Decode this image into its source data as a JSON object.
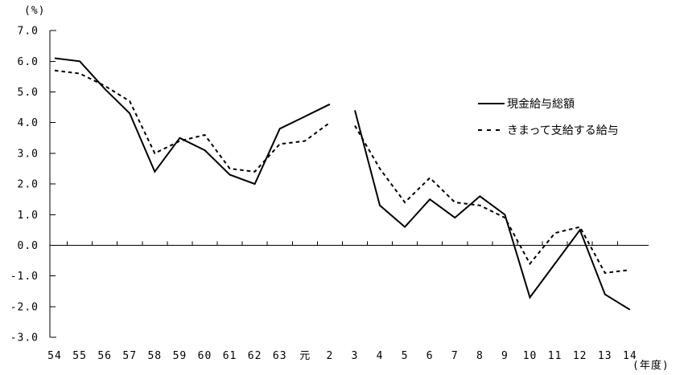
{
  "chart_data": {
    "type": "line",
    "title": "",
    "unit_label_y": "(%)",
    "unit_label_x": "(年度)",
    "categories": [
      "54",
      "55",
      "56",
      "57",
      "58",
      "59",
      "60",
      "61",
      "62",
      "63",
      "元",
      "2",
      "3",
      "4",
      "5",
      "6",
      "7",
      "8",
      "9",
      "10",
      "11",
      "12",
      "13",
      "14"
    ],
    "gap_after_index": 11,
    "series": [
      {
        "name": "現金給与総額",
        "style": "solid",
        "values": [
          6.1,
          6.0,
          5.1,
          4.3,
          2.4,
          3.5,
          3.1,
          2.3,
          2.0,
          3.8,
          4.2,
          4.6,
          4.4,
          1.3,
          0.6,
          1.5,
          0.9,
          1.6,
          1.0,
          -1.7,
          -0.6,
          0.5,
          -1.6,
          -2.1
        ]
      },
      {
        "name": "きまって支給する給与",
        "style": "dotted",
        "values": [
          5.7,
          5.6,
          5.2,
          4.7,
          3.0,
          3.4,
          3.6,
          2.5,
          2.4,
          3.3,
          3.4,
          4.0,
          3.9,
          2.5,
          1.4,
          2.2,
          1.4,
          1.3,
          0.9,
          -0.6,
          0.4,
          0.6,
          -0.9,
          -0.8
        ]
      }
    ],
    "ylim": [
      -3.0,
      7.0
    ],
    "ytick_step": 1.0,
    "ytick_labels": [
      "7.0",
      "6.0",
      "5.0",
      "4.0",
      "3.0",
      "2.0",
      "1.0",
      "0.0",
      "-1.0",
      "-2.0",
      "-3.0"
    ],
    "grid": false,
    "zero_baseline": true,
    "legend_position": "right-middle",
    "colors": {
      "line": "#000000",
      "background": "#ffffff",
      "text": "#000000"
    }
  }
}
